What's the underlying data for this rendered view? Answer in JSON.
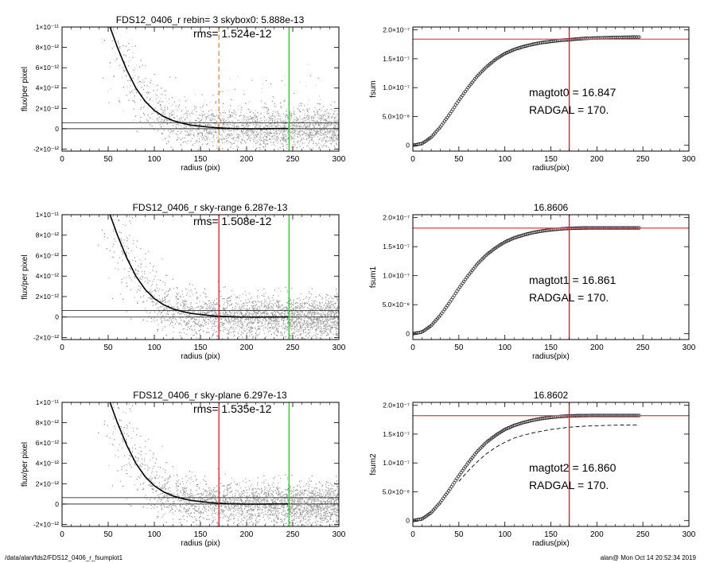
{
  "footer": {
    "path": "/data/alan/fds2/FDS12_0406_r_fsumplot1",
    "stamp": "alan@  Mon Oct 14 20:52:34 2019"
  },
  "colors": {
    "scatter_dark": "#8a8a8a",
    "scatter_light": "#c8c8c8",
    "profile": "#000000",
    "rad_line_red": "#e0202a",
    "rad_line_orange": "#e58a2e",
    "limit_line_green": "#22cc22",
    "hline_red": "#e05050"
  },
  "chart_data": [
    {
      "type": "scatter",
      "panel": "profile-1",
      "title": "FDS12_0406_r rebin= 3    skybox0:  5.888e-13",
      "annotation": "rms= 1.524e-12",
      "xlabel": "radius (pix)",
      "ylabel": "flux/per pixel",
      "xlim": [
        0,
        300
      ],
      "ylim": [
        -2.2e-12,
        1e-11
      ],
      "xticks": [
        "0",
        "50",
        "100",
        "150",
        "200",
        "250",
        "300"
      ],
      "yticks": [
        {
          "value": 1e-11,
          "label": "1×10⁻¹¹"
        },
        {
          "value": 8e-12,
          "label": "8×10⁻¹²"
        },
        {
          "value": 6e-12,
          "label": "6×10⁻¹²"
        },
        {
          "value": 4e-12,
          "label": "4×10⁻¹²"
        },
        {
          "value": 2e-12,
          "label": "2×10⁻¹²"
        },
        {
          "value": 0,
          "label": "0"
        },
        {
          "value": -2e-12,
          "label": "-2×10⁻¹²"
        }
      ],
      "scatter_tone": "light",
      "vertical_lines": [
        {
          "x": 170,
          "color": "#e58a2e",
          "dashed": true
        },
        {
          "x": 246,
          "color": "#22cc22",
          "dashed": false
        }
      ],
      "horizontal_lines": [
        5.888e-13,
        0
      ],
      "profile": {
        "r": [
          50,
          60,
          70,
          80,
          90,
          100,
          110,
          120,
          130,
          140,
          150,
          160,
          170,
          180,
          190,
          200,
          210,
          220,
          230,
          240,
          245
        ],
        "flux": [
          1.05e-11,
          8e-12,
          5.8e-12,
          4e-12,
          2.7e-12,
          1.8e-12,
          1.2e-12,
          8e-13,
          5.5e-13,
          3.5e-13,
          2.5e-13,
          1.5e-13,
          8e-14,
          4e-14,
          1e-14,
          0,
          -1e-14,
          0,
          1e-14,
          1e-14,
          1e-14
        ]
      }
    },
    {
      "type": "line",
      "panel": "curve-1",
      "title": "",
      "annotations": [
        "magtot0 =  16.847",
        "RADGAL =    170."
      ],
      "xlabel": "radius(pix)",
      "ylabel": "fsum",
      "xlim": [
        0,
        300
      ],
      "ylim": [
        -1e-08,
        2.05e-07
      ],
      "xticks": [
        "0",
        "50",
        "100",
        "150",
        "200",
        "250",
        "300"
      ],
      "yticks": [
        {
          "value": 2e-07,
          "label": "2.0×10⁻⁷"
        },
        {
          "value": 1.5e-07,
          "label": "1.5×10⁻⁷"
        },
        {
          "value": 1e-07,
          "label": "1.0×10⁻⁷"
        },
        {
          "value": 5e-08,
          "label": "5.0×10⁻⁸"
        },
        {
          "value": 0,
          "label": "0"
        }
      ],
      "vertical_line": 170,
      "horizontal_line": 1.84e-07,
      "curve": {
        "r": [
          0,
          10,
          20,
          30,
          40,
          50,
          60,
          70,
          80,
          90,
          100,
          110,
          120,
          130,
          140,
          150,
          160,
          170,
          180,
          190,
          200,
          210,
          220,
          230,
          240,
          246
        ],
        "fsum": [
          0,
          3e-09,
          1.4e-08,
          3.2e-08,
          5.4e-08,
          7.8e-08,
          1e-07,
          1.2e-07,
          1.36e-07,
          1.49e-07,
          1.59e-07,
          1.66e-07,
          1.71e-07,
          1.75e-07,
          1.78e-07,
          1.8e-07,
          1.82e-07,
          1.83e-07,
          1.845e-07,
          1.855e-07,
          1.86e-07,
          1.865e-07,
          1.87e-07,
          1.872e-07,
          1.875e-07,
          1.877e-07
        ]
      },
      "dashed_curve": null
    },
    {
      "type": "scatter",
      "panel": "profile-2",
      "title": "FDS12_0406_r sky-range  6.287e-13",
      "annotation": "rms= 1.508e-12",
      "xlabel": "radius (pix)",
      "ylabel": "flux/per pixel",
      "xlim": [
        0,
        300
      ],
      "ylim": [
        -2.2e-12,
        1e-11
      ],
      "xticks": [
        "0",
        "50",
        "100",
        "150",
        "200",
        "250",
        "300"
      ],
      "yticks": [
        {
          "value": 1e-11,
          "label": "1×10⁻¹¹"
        },
        {
          "value": 8e-12,
          "label": "8×10⁻¹²"
        },
        {
          "value": 6e-12,
          "label": "6×10⁻¹²"
        },
        {
          "value": 4e-12,
          "label": "4×10⁻¹²"
        },
        {
          "value": 2e-12,
          "label": "2×10⁻¹²"
        },
        {
          "value": 0,
          "label": "0"
        },
        {
          "value": -2e-12,
          "label": "-2×10⁻¹²"
        }
      ],
      "scatter_tone": "dark",
      "vertical_lines": [
        {
          "x": 170,
          "color": "#e0202a",
          "dashed": false
        },
        {
          "x": 246,
          "color": "#22cc22",
          "dashed": false
        }
      ],
      "horizontal_lines": [
        6.287e-13,
        0
      ],
      "profile": {
        "r": [
          50,
          60,
          70,
          80,
          90,
          100,
          110,
          120,
          130,
          140,
          150,
          160,
          170,
          180,
          190,
          200,
          210,
          220,
          230,
          240,
          245
        ],
        "flux": [
          1.05e-11,
          8e-12,
          5.8e-12,
          4e-12,
          2.7e-12,
          1.8e-12,
          1.2e-12,
          8e-13,
          5.5e-13,
          3.5e-13,
          2.5e-13,
          1.5e-13,
          8e-14,
          4e-14,
          1e-14,
          0,
          -1e-14,
          0,
          1e-14,
          1e-14,
          1e-14
        ]
      }
    },
    {
      "type": "line",
      "panel": "curve-2",
      "title": "16.8606",
      "annotations": [
        "magtot1 =  16.861",
        "RADGAL =    170."
      ],
      "xlabel": "radius(pix)",
      "ylabel": "fsum1",
      "xlim": [
        0,
        300
      ],
      "ylim": [
        -1e-08,
        2.05e-07
      ],
      "xticks": [
        "0",
        "50",
        "100",
        "150",
        "200",
        "250",
        "300"
      ],
      "yticks": [
        {
          "value": 2e-07,
          "label": "2.0×10⁻⁷"
        },
        {
          "value": 1.5e-07,
          "label": "1.5×10⁻⁷"
        },
        {
          "value": 1e-07,
          "label": "1.0×10⁻⁷"
        },
        {
          "value": 5e-08,
          "label": "5.0×10⁻⁸"
        },
        {
          "value": 0,
          "label": "0"
        }
      ],
      "vertical_line": 170,
      "horizontal_line": 1.82e-07,
      "curve": {
        "r": [
          0,
          10,
          20,
          30,
          40,
          50,
          60,
          70,
          80,
          90,
          100,
          110,
          120,
          130,
          140,
          150,
          160,
          170,
          180,
          190,
          200,
          210,
          220,
          230,
          240,
          246
        ],
        "fsum": [
          0,
          3e-09,
          1.4e-08,
          3.2e-08,
          5.4e-08,
          7.8e-08,
          1e-07,
          1.2e-07,
          1.36e-07,
          1.48e-07,
          1.58e-07,
          1.65e-07,
          1.7e-07,
          1.74e-07,
          1.77e-07,
          1.79e-07,
          1.805e-07,
          1.815e-07,
          1.82e-07,
          1.822e-07,
          1.822e-07,
          1.823e-07,
          1.823e-07,
          1.823e-07,
          1.823e-07,
          1.823e-07
        ]
      },
      "dashed_curve": null
    },
    {
      "type": "scatter",
      "panel": "profile-3",
      "title": "FDS12_0406_r sky-plane  6.297e-13",
      "annotation": "rms= 1.535e-12",
      "xlabel": "radius (pix)",
      "ylabel": "flux/per pixel",
      "xlim": [
        0,
        300
      ],
      "ylim": [
        -2.2e-12,
        1e-11
      ],
      "xticks": [
        "0",
        "50",
        "100",
        "150",
        "200",
        "250",
        "300"
      ],
      "yticks": [
        {
          "value": 1e-11,
          "label": "1×10⁻¹¹"
        },
        {
          "value": 8e-12,
          "label": "8×10⁻¹²"
        },
        {
          "value": 6e-12,
          "label": "6×10⁻¹²"
        },
        {
          "value": 4e-12,
          "label": "4×10⁻¹²"
        },
        {
          "value": 2e-12,
          "label": "2×10⁻¹²"
        },
        {
          "value": 0,
          "label": "0"
        },
        {
          "value": -2e-12,
          "label": "-2×10⁻¹²"
        }
      ],
      "scatter_tone": "dark",
      "vertical_lines": [
        {
          "x": 170,
          "color": "#e0202a",
          "dashed": false
        },
        {
          "x": 246,
          "color": "#22cc22",
          "dashed": false
        }
      ],
      "horizontal_lines": [
        6.297e-13,
        0
      ],
      "profile": {
        "r": [
          50,
          60,
          70,
          80,
          90,
          100,
          110,
          120,
          130,
          140,
          150,
          160,
          170,
          180,
          190,
          200,
          210,
          220,
          230,
          240,
          245
        ],
        "flux": [
          1.05e-11,
          8e-12,
          5.8e-12,
          4e-12,
          2.7e-12,
          1.8e-12,
          1.2e-12,
          8e-13,
          5.5e-13,
          3.5e-13,
          2.5e-13,
          1.5e-13,
          8e-14,
          4e-14,
          1e-14,
          0,
          -1e-14,
          0,
          1e-14,
          1e-14,
          1e-14
        ]
      }
    },
    {
      "type": "line",
      "panel": "curve-3",
      "title": "16.8602",
      "annotations": [
        "magtot2 =  16.860",
        "RADGAL =    170."
      ],
      "xlabel": "radius(pix)",
      "ylabel": "fsum2",
      "xlim": [
        0,
        300
      ],
      "ylim": [
        -1e-08,
        2.05e-07
      ],
      "xticks": [
        "0",
        "50",
        "100",
        "150",
        "200",
        "250",
        "300"
      ],
      "yticks": [
        {
          "value": 2e-07,
          "label": "2.0×10⁻⁷"
        },
        {
          "value": 1.5e-07,
          "label": "1.5×10⁻⁷"
        },
        {
          "value": 1e-07,
          "label": "1.0×10⁻⁷"
        },
        {
          "value": 5e-08,
          "label": "5.0×10⁻⁸"
        },
        {
          "value": 0,
          "label": "0"
        }
      ],
      "vertical_line": 170,
      "horizontal_line": 1.82e-07,
      "curve": {
        "r": [
          0,
          10,
          20,
          30,
          40,
          50,
          60,
          70,
          80,
          90,
          100,
          110,
          120,
          130,
          140,
          150,
          160,
          170,
          180,
          190,
          200,
          210,
          220,
          230,
          240,
          246
        ],
        "fsum": [
          0,
          3e-09,
          1.4e-08,
          3.2e-08,
          5.4e-08,
          7.8e-08,
          1e-07,
          1.2e-07,
          1.36e-07,
          1.48e-07,
          1.58e-07,
          1.65e-07,
          1.7e-07,
          1.74e-07,
          1.77e-07,
          1.79e-07,
          1.805e-07,
          1.815e-07,
          1.82e-07,
          1.822e-07,
          1.822e-07,
          1.823e-07,
          1.823e-07,
          1.823e-07,
          1.823e-07,
          1.823e-07
        ]
      },
      "dashed_curve": {
        "r": [
          50,
          60,
          70,
          80,
          90,
          100,
          110,
          120,
          130,
          140,
          150,
          160,
          170,
          180,
          190,
          200,
          210,
          220,
          230,
          240,
          246
        ],
        "fsum": [
          6.8e-08,
          8.6e-08,
          1.02e-07,
          1.16e-07,
          1.27e-07,
          1.36e-07,
          1.43e-07,
          1.48e-07,
          1.52e-07,
          1.55e-07,
          1.58e-07,
          1.6e-07,
          1.62e-07,
          1.63e-07,
          1.64e-07,
          1.645e-07,
          1.65e-07,
          1.655e-07,
          1.657e-07,
          1.658e-07,
          1.66e-07
        ]
      }
    }
  ]
}
